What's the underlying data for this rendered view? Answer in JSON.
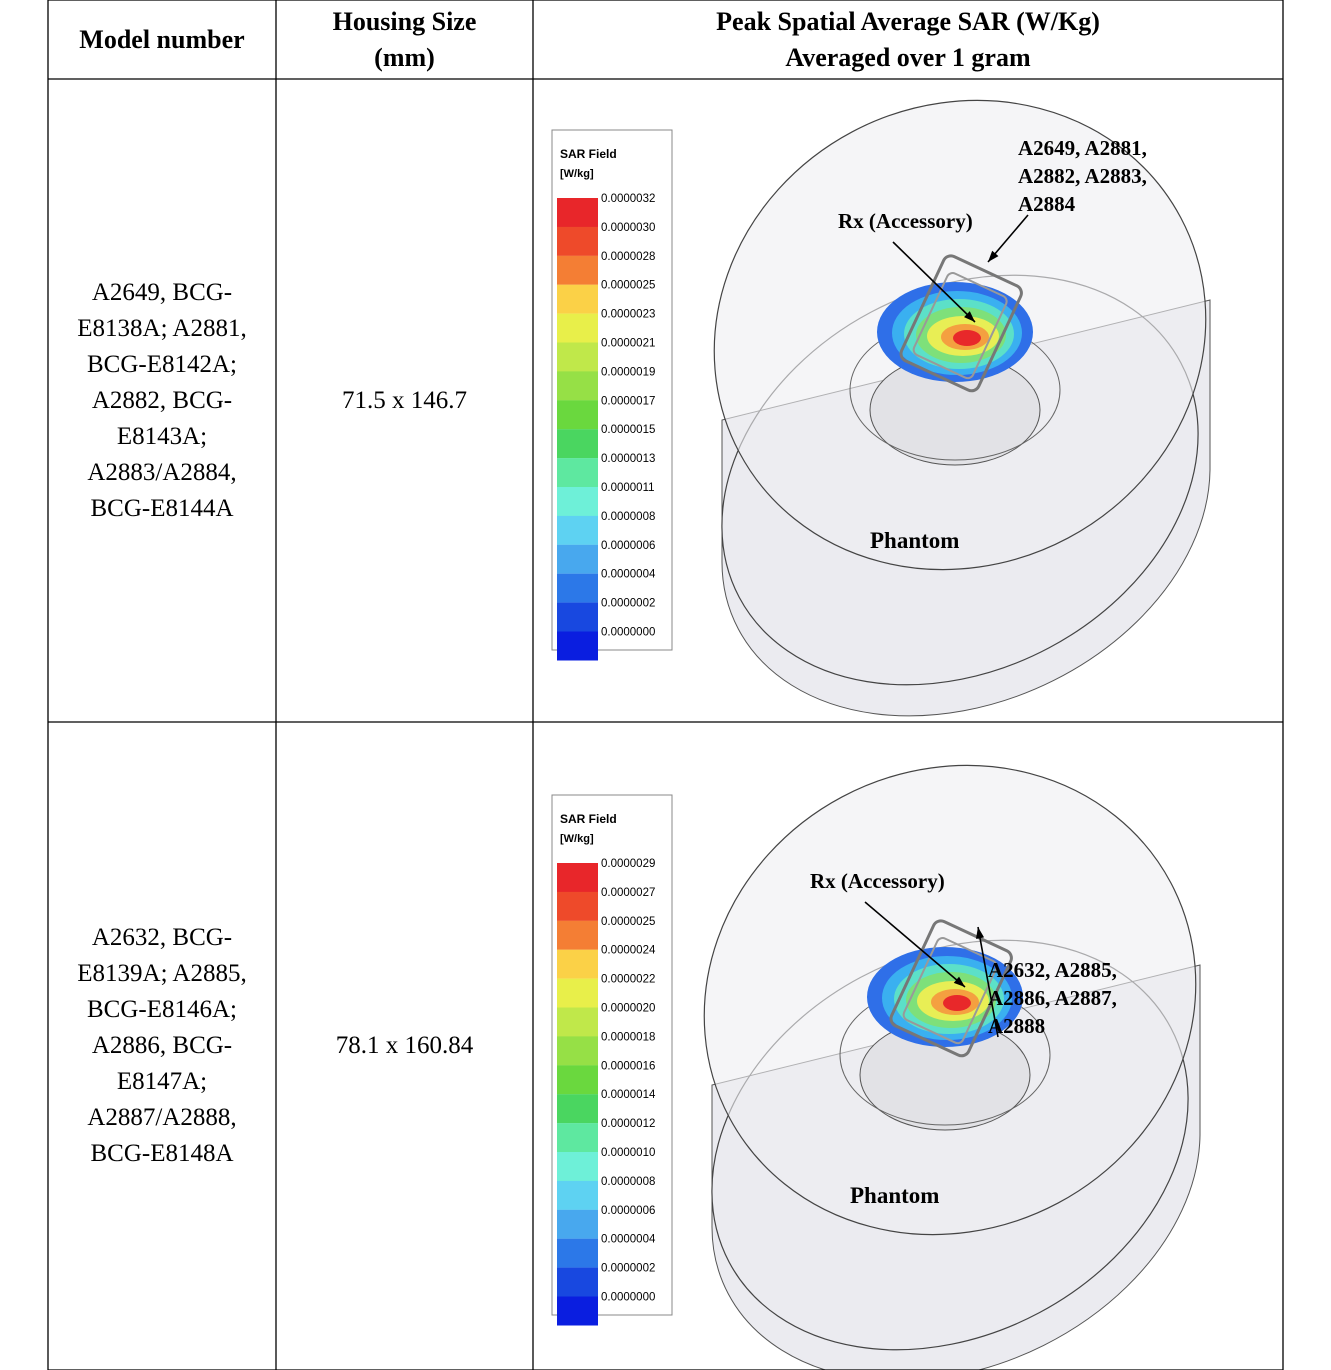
{
  "table": {
    "header": [
      [
        "Model number"
      ],
      [
        "Housing Size",
        "(mm)"
      ],
      [
        "Peak Spatial Average SAR (W/Kg)",
        "Averaged over 1 gram"
      ]
    ],
    "rows": [
      {
        "model": "A2649, BCG-E8138A; A2881, BCG-E8142A; A2882, BCG-E8143A; A2883/A2884, BCG-E8144A",
        "size": "71.5 x 146.7",
        "figure": {
          "legend_title": "SAR Field",
          "legend_unit": "[W/kg]",
          "legend_values": [
            "0.0000032",
            "0.0000030",
            "0.0000028",
            "0.0000025",
            "0.0000023",
            "0.0000021",
            "0.0000019",
            "0.0000017",
            "0.0000015",
            "0.0000013",
            "0.0000011",
            "0.0000008",
            "0.0000006",
            "0.0000004",
            "0.0000002",
            "0.0000000"
          ],
          "callout": [
            "A2649, A2881,",
            "A2882, A2883,",
            "A2884"
          ],
          "rx_label": "Rx (Accessory)",
          "phantom_label": "Phantom"
        }
      },
      {
        "model": "A2632, BCG-E8139A; A2885, BCG-E8146A; A2886, BCG-E8147A; A2887/A2888, BCG-E8148A",
        "size": "78.1 x 160.84",
        "figure": {
          "legend_title": "SAR Field",
          "legend_unit": "[W/kg]",
          "legend_values": [
            "0.0000029",
            "0.0000027",
            "0.0000025",
            "0.0000024",
            "0.0000022",
            "0.0000020",
            "0.0000018",
            "0.0000016",
            "0.0000014",
            "0.0000012",
            "0.0000010",
            "0.0000008",
            "0.0000006",
            "0.0000004",
            "0.0000002",
            "0.0000000"
          ],
          "callout": [
            "A2632, A2885,",
            "A2886, A2887,",
            "A2888"
          ],
          "rx_label": "Rx (Accessory)",
          "phantom_label": "Phantom"
        }
      }
    ]
  }
}
